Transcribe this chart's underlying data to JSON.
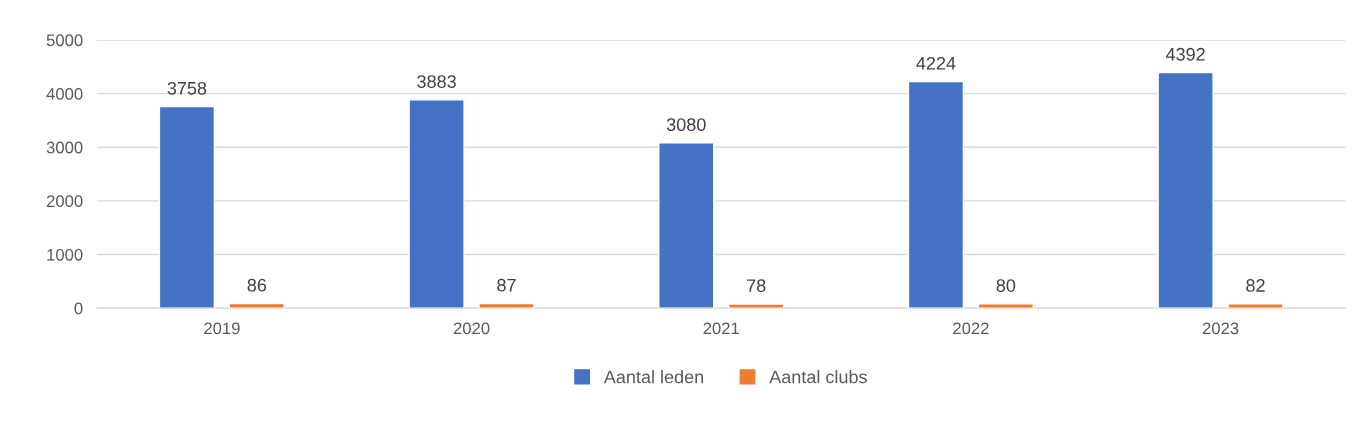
{
  "chart_data": {
    "type": "bar",
    "categories": [
      "2019",
      "2020",
      "2021",
      "2022",
      "2023"
    ],
    "series": [
      {
        "name": "Aantal leden",
        "color": "#4472c4",
        "values": [
          3758,
          3883,
          3080,
          4224,
          4392
        ]
      },
      {
        "name": "Aantal clubs",
        "color": "#ed7d31",
        "values": [
          86,
          87,
          78,
          80,
          82
        ]
      }
    ],
    "ylim": [
      0,
      5000
    ],
    "yticks": [
      0,
      1000,
      2000,
      3000,
      4000,
      5000
    ],
    "grid": "y",
    "legend": "bottom",
    "data_labels": true
  }
}
